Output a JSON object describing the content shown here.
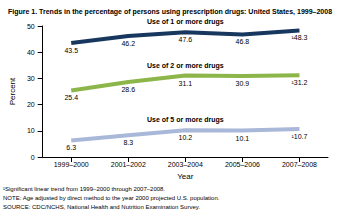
{
  "chart_data": {
    "type": "line",
    "title": "Figure 1. Trends in the percentage of persons using prescription drugs: United States, 1999–2008",
    "x_label": "Year",
    "y_label": "Percent",
    "categories": [
      "1999–2000",
      "2001–2002",
      "2003–2004",
      "2005–2006",
      "2007–2008"
    ],
    "series": [
      {
        "name": "Use of 1 or more drugs",
        "color": "#17375e",
        "values": [
          43.5,
          46.2,
          47.6,
          46.8,
          48.3
        ],
        "value_labels": [
          "43.5",
          "46.2",
          "47.6",
          "46.8",
          "¹48.3"
        ]
      },
      {
        "name": "Use of 2 or more drugs",
        "color": "#8cb54a",
        "values": [
          25.4,
          28.6,
          31.1,
          30.9,
          31.2
        ],
        "value_labels": [
          "25.4",
          "28.6",
          "31.1",
          "30.9",
          "¹31.2"
        ]
      },
      {
        "name": "Use of 5 or more drugs",
        "color": "#a9b8d8",
        "values": [
          6.3,
          8.3,
          10.2,
          10.1,
          10.7
        ],
        "value_labels": [
          "6.3",
          "8.3",
          "10.2",
          "10.1",
          "¹10.7"
        ]
      }
    ],
    "ylim": [
      0,
      50
    ],
    "yticks": [
      0,
      10,
      20,
      30,
      40,
      50
    ],
    "grid": false,
    "data_labels": true,
    "footnotes": [
      "¹Significant linear trend from 1999–2000 through 2007–2008.",
      "NOTE: Age adjusted by direct method to the year 2000 projected U.S. population.",
      "SOURCE: CDC/NCHS, National Health and Nutrition Examination Survey."
    ]
  }
}
